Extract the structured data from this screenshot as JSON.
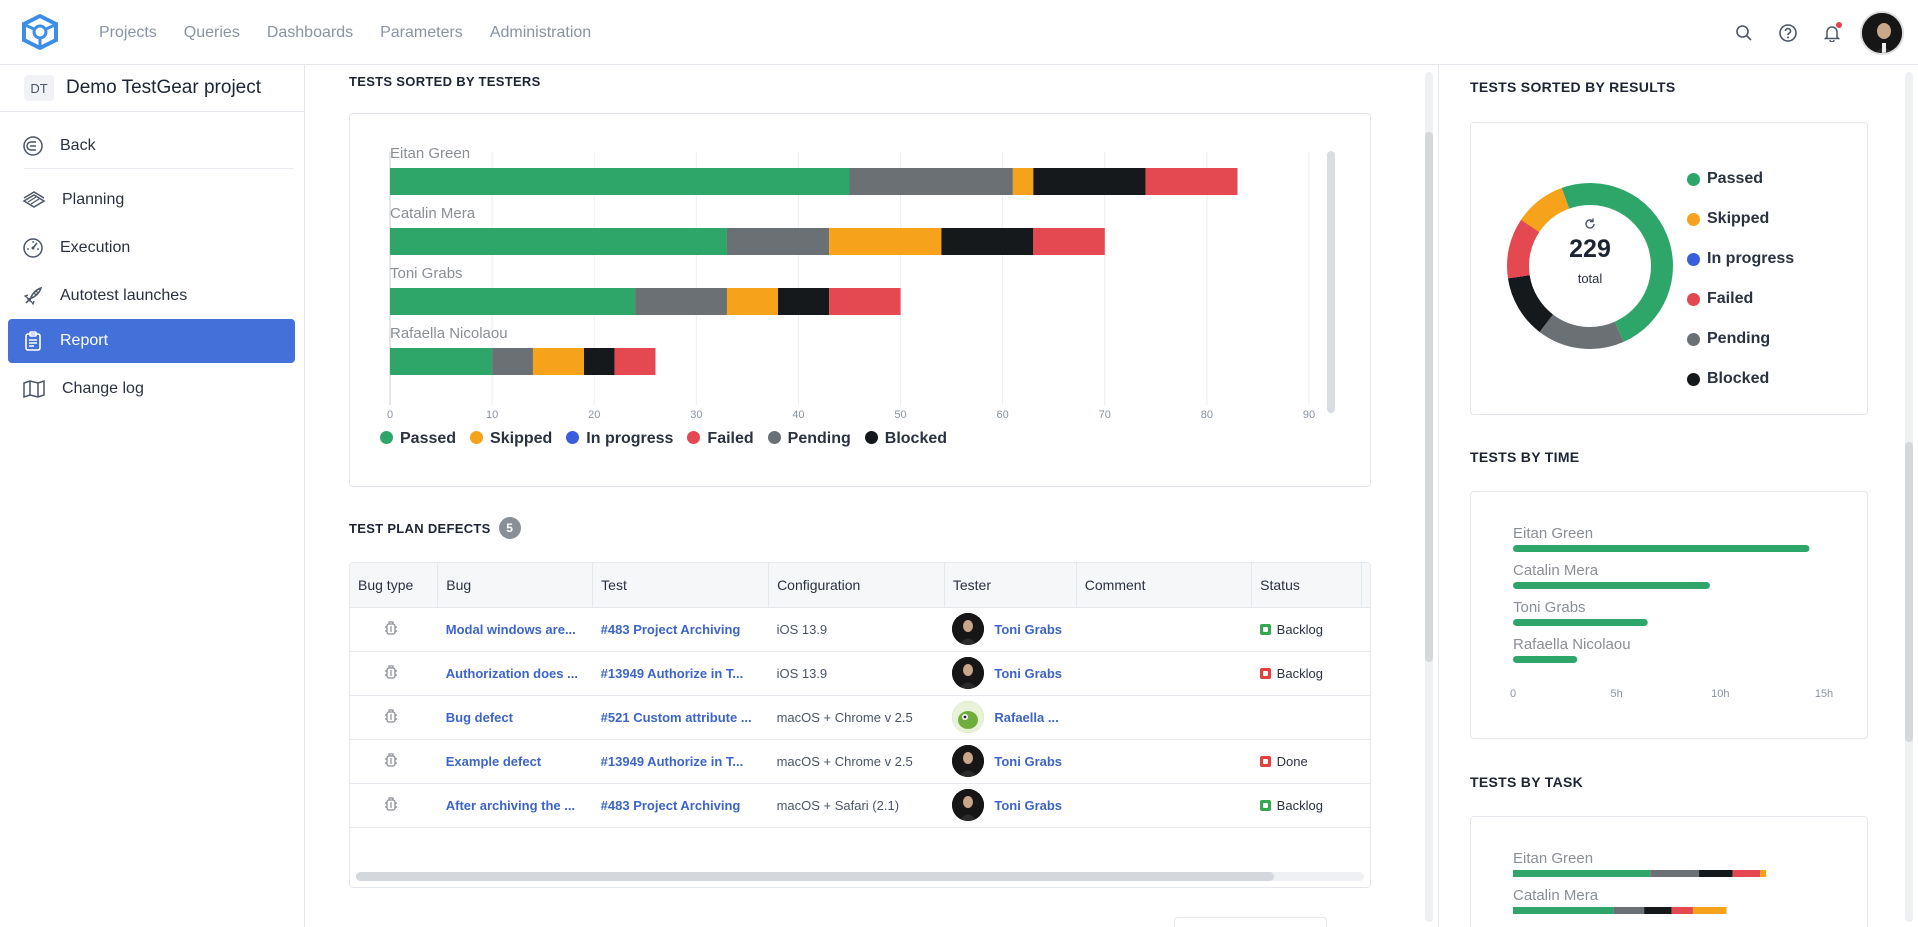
{
  "topnav": {
    "items": [
      "Projects",
      "Queries",
      "Dashboards",
      "Parameters",
      "Administration"
    ]
  },
  "project": {
    "badge": "DT",
    "name": "Demo TestGear project"
  },
  "sidebar": {
    "items": [
      {
        "label": "Back",
        "icon": "back-icon"
      },
      {
        "label": "Planning",
        "icon": "planning-icon"
      },
      {
        "label": "Execution",
        "icon": "speedometer-icon"
      },
      {
        "label": "Autotest launches",
        "icon": "rocket-icon"
      },
      {
        "label": "Report",
        "icon": "clipboard-icon",
        "active": true
      },
      {
        "label": "Change log",
        "icon": "map-icon"
      }
    ]
  },
  "colors": {
    "passed": "#2ea66a",
    "skipped": "#f7a21b",
    "in_progress": "#3a5ddb",
    "failed": "#e44850",
    "pending": "#6b7075",
    "blocked": "#15191c",
    "accent": "#4371d9"
  },
  "legend": [
    "Passed",
    "Skipped",
    "In progress",
    "Failed",
    "Pending",
    "Blocked"
  ],
  "testers_chart": {
    "title": "TESTS SORTED BY TESTERS",
    "chart_data": {
      "type": "bar",
      "orientation": "horizontal-stacked",
      "categories": [
        "Eitan Green",
        "Catalin Mera",
        "Toni Grabs",
        "Rafaella Nicolaou"
      ],
      "segment_order": [
        "passed",
        "pending",
        "skipped",
        "blocked",
        "failed"
      ],
      "series": [
        {
          "name": "Passed",
          "values": [
            45,
            33,
            24,
            10
          ]
        },
        {
          "name": "Pending",
          "values": [
            16,
            10,
            9,
            4
          ]
        },
        {
          "name": "Skipped",
          "values": [
            2,
            11,
            5,
            5
          ]
        },
        {
          "name": "Blocked",
          "values": [
            11,
            9,
            5,
            3
          ]
        },
        {
          "name": "Failed",
          "values": [
            9,
            7,
            7,
            4
          ]
        }
      ],
      "xticks": [
        "0",
        "10",
        "20",
        "30",
        "40",
        "50",
        "60",
        "70",
        "80",
        "90"
      ],
      "xlim": [
        0,
        90
      ]
    }
  },
  "defects": {
    "title": "TEST PLAN DEFECTS",
    "count": "5",
    "columns": [
      "Bug type",
      "Bug",
      "Test",
      "Configuration",
      "Tester",
      "Comment",
      "Status"
    ],
    "rows": [
      {
        "bug": "Modal windows are...",
        "test": "#483 Project Archiving",
        "config": "iOS 13.9",
        "tester": "Toni Grabs",
        "comment": "",
        "status": "Backlog",
        "status_color": "g"
      },
      {
        "bug": "Authorization does ...",
        "test": "#13949 Authorize in T...",
        "config": "iOS 13.9",
        "tester": "Toni Grabs",
        "comment": "",
        "status": "Backlog",
        "status_color": "r"
      },
      {
        "bug": "Bug defect",
        "test": "#521 Custom attribute ...",
        "config": "macOS + Chrome v 2.5",
        "tester": "Rafaella ...",
        "comment": "",
        "status": "",
        "status_color": ""
      },
      {
        "bug": "Example defect",
        "test": "#13949 Authorize in T...",
        "config": "macOS + Chrome v 2.5",
        "tester": "Toni Grabs",
        "comment": "",
        "status": "Done",
        "status_color": "r"
      },
      {
        "bug": "After archiving the ...",
        "test": "#483 Project Archiving",
        "config": "macOS + Safari (2.1)",
        "tester": "Toni Grabs",
        "comment": "",
        "status": "Backlog",
        "status_color": "g"
      }
    ]
  },
  "results": {
    "title": "TESTS SORTED BY RESULTS",
    "total": "229",
    "total_label": "total",
    "chart_data": {
      "type": "pie",
      "style": "donut",
      "categories": [
        "Passed",
        "Pending",
        "Blocked",
        "Failed",
        "Skipped"
      ],
      "values": [
        112,
        39,
        28,
        27,
        23
      ]
    }
  },
  "by_time": {
    "title": "TESTS BY TIME",
    "chart_data": {
      "type": "bar",
      "orientation": "horizontal",
      "categories": [
        "Eitan Green",
        "Catalin Mera",
        "Toni Grabs",
        "Rafaella Nicolaou"
      ],
      "values": [
        14.3,
        9.5,
        6.5,
        3.1
      ],
      "xticks": [
        "0",
        "5h",
        "10h",
        "15h"
      ],
      "xlim": [
        0,
        15
      ]
    }
  },
  "by_task": {
    "title": "TESTS BY TASK",
    "chart_data": {
      "type": "bar",
      "orientation": "horizontal-stacked",
      "categories": [
        "Eitan Green",
        "Catalin Mera"
      ],
      "segment_order": [
        "passed",
        "pending",
        "blocked",
        "failed",
        "skipped"
      ],
      "series": [
        {
          "name": "Passed",
          "values": [
            45,
            33
          ]
        },
        {
          "name": "Pending",
          "values": [
            16,
            10
          ]
        },
        {
          "name": "Blocked",
          "values": [
            11,
            9
          ]
        },
        {
          "name": "Failed",
          "values": [
            9,
            7
          ]
        },
        {
          "name": "Skipped",
          "values": [
            2,
            11
          ]
        }
      ]
    }
  }
}
